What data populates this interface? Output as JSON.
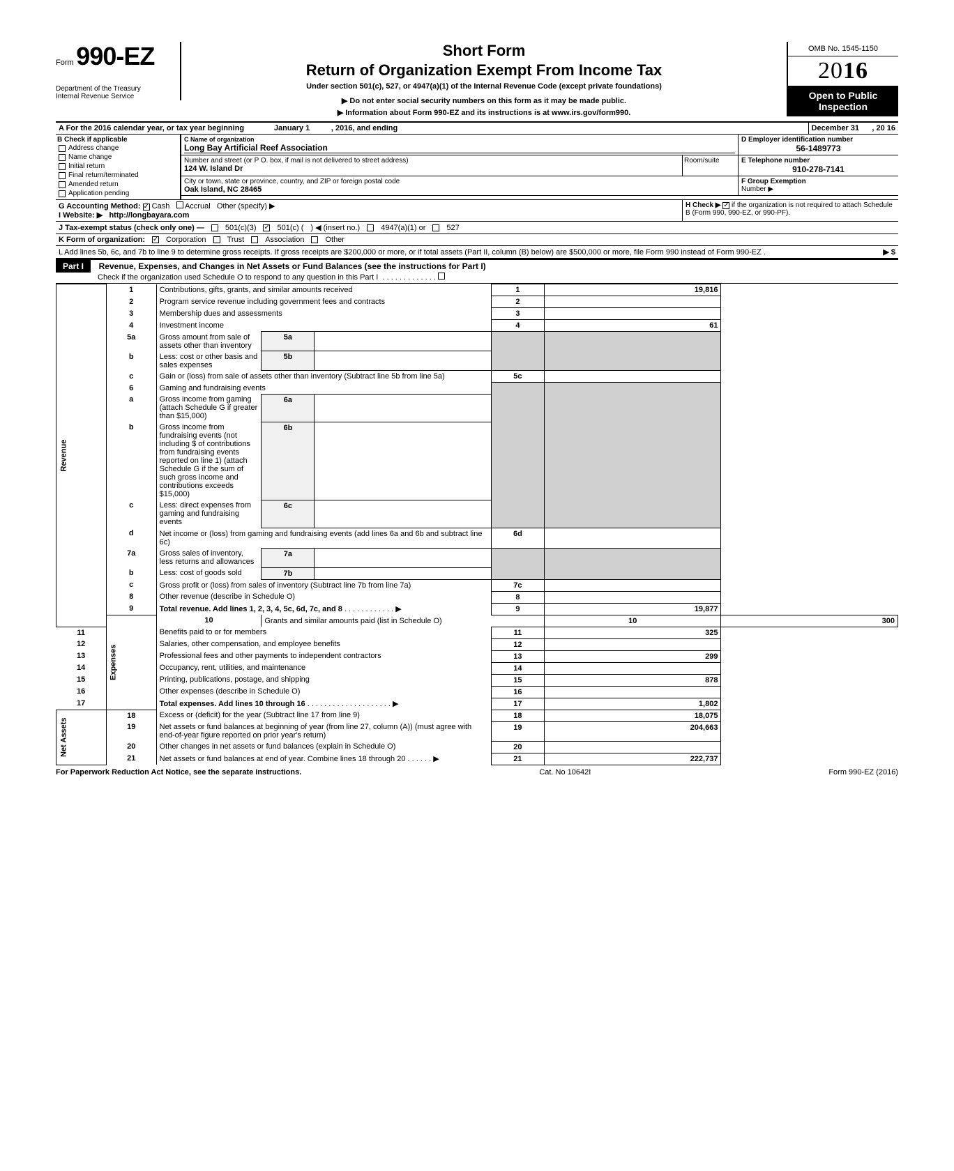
{
  "header": {
    "form_prefix": "Form",
    "form_number": "990-EZ",
    "short_form": "Short Form",
    "return_title": "Return of Organization Exempt From Income Tax",
    "under_section": "Under section 501(c), 527, or 4947(a)(1) of the Internal Revenue Code (except private foundations)",
    "donot": "▶ Do not enter social security numbers on this form as it may be made public.",
    "info_about": "▶ Information about Form 990-EZ and its instructions is at www.irs.gov/form990.",
    "omb": "OMB No. 1545-1150",
    "year_outline": "20",
    "year_bold": "16",
    "open_public_1": "Open to Public",
    "open_public_2": "Inspection",
    "dept": "Department of the Treasury",
    "irs": "Internal Revenue Service"
  },
  "row_a": {
    "label": "A For the 2016 calendar year, or tax year beginning",
    "begin": "January 1",
    "mid": ", 2016, and ending",
    "end_month": "December 31",
    "end_year": ", 20   16"
  },
  "section_b": {
    "label": "B Check if applicable",
    "items": [
      "Address change",
      "Name change",
      "Initial return",
      "Final return/terminated",
      "Amended return",
      "Application pending"
    ]
  },
  "section_c": {
    "label": "C Name of organization",
    "org_name": "Long Bay Artificial Reef Association",
    "addr_label": "Number and street (or P O. box, if mail is not delivered to street address)",
    "address": "124 W. Island Dr",
    "city_label": "City or town, state or province, country, and ZIP or foreign postal code",
    "city": "Oak Island, NC 28465",
    "room_label": "Room/suite"
  },
  "section_d": {
    "label": "D Employer identification number",
    "ein": "56-1489773"
  },
  "section_e": {
    "label": "E Telephone number",
    "phone": "910-278-7141"
  },
  "section_f": {
    "label": "F Group Exemption",
    "number_label": "Number ▶"
  },
  "row_g": {
    "label": "G Accounting Method:",
    "cash": "Cash",
    "accrual": "Accrual",
    "other": "Other (specify) ▶"
  },
  "row_h": {
    "text1": "H Check ▶",
    "text2": "if the organization is not required to attach Schedule B (Form 990, 990-EZ, or 990-PF)."
  },
  "row_i": {
    "label": "I Website: ▶",
    "website": "http://longbayara.com"
  },
  "row_j": {
    "label": "J Tax-exempt status (check only one) —",
    "opt1": "501(c)(3)",
    "opt2": "501(c) (",
    "insert": ") ◀ (insert no.)",
    "opt3": "4947(a)(1) or",
    "opt4": "527"
  },
  "row_k": {
    "label": "K Form of organization:",
    "corp": "Corporation",
    "trust": "Trust",
    "assoc": "Association",
    "other": "Other"
  },
  "row_l": {
    "text": "L Add lines 5b, 6c, and 7b to line 9 to determine gross receipts. If gross receipts are $200,000 or more, or if total assets (Part II, column (B) below) are $500,000 or more, file Form 990 instead of Form 990-EZ .",
    "arrow": "▶   $"
  },
  "part1": {
    "label": "Part I",
    "title": "Revenue, Expenses, and Changes in Net Assets or Fund Balances (see the instructions for Part I)",
    "sub": "Check if the organization used Schedule O to respond to any question in this Part I"
  },
  "side_labels": {
    "revenue": "Revenue",
    "expenses": "Expenses",
    "net_assets": "Net Assets"
  },
  "lines": {
    "1": {
      "desc": "Contributions, gifts, grants, and similar amounts received",
      "val": "19,816"
    },
    "2": {
      "desc": "Program service revenue including government fees and contracts",
      "val": ""
    },
    "3": {
      "desc": "Membership dues and assessments",
      "val": ""
    },
    "4": {
      "desc": "Investment income",
      "val": "61"
    },
    "5a": {
      "desc": "Gross amount from sale of assets other than inventory",
      "sub": "5a"
    },
    "5b": {
      "desc": "Less: cost or other basis and sales expenses",
      "sub": "5b"
    },
    "5c": {
      "desc": "Gain or (loss) from sale of assets other than inventory (Subtract line 5b from line 5a)",
      "val": ""
    },
    "6": {
      "desc": "Gaming and fundraising events"
    },
    "6a": {
      "desc": "Gross income from gaming (attach Schedule G if greater than $15,000)",
      "sub": "6a"
    },
    "6b": {
      "desc": "Gross income from fundraising events (not including  $                     of contributions from fundraising events reported on line 1) (attach Schedule G if the sum of such gross income and contributions exceeds $15,000)",
      "sub": "6b"
    },
    "6c": {
      "desc": "Less: direct expenses from gaming and fundraising events",
      "sub": "6c"
    },
    "6d": {
      "desc": "Net income or (loss) from gaming and fundraising events (add lines 6a and 6b and subtract line 6c)",
      "val": ""
    },
    "7a": {
      "desc": "Gross sales of inventory, less returns and allowances",
      "sub": "7a"
    },
    "7b": {
      "desc": "Less: cost of goods sold",
      "sub": "7b"
    },
    "7c": {
      "desc": "Gross profit or (loss) from sales of inventory (Subtract line 7b from line 7a)",
      "val": ""
    },
    "8": {
      "desc": "Other revenue (describe in Schedule O)",
      "val": ""
    },
    "9": {
      "desc": "Total revenue. Add lines 1, 2, 3, 4, 5c, 6d, 7c, and 8",
      "val": "19,877"
    },
    "10": {
      "desc": "Grants and similar amounts paid (list in Schedule O)",
      "val": "300"
    },
    "11": {
      "desc": "Benefits paid to or for members",
      "val": "325"
    },
    "12": {
      "desc": "Salaries, other compensation, and employee benefits",
      "val": ""
    },
    "13": {
      "desc": "Professional fees and other payments to independent contractors",
      "val": "299"
    },
    "14": {
      "desc": "Occupancy, rent, utilities, and maintenance",
      "val": ""
    },
    "15": {
      "desc": "Printing, publications, postage, and shipping",
      "val": "878"
    },
    "16": {
      "desc": "Other expenses (describe in Schedule O)",
      "val": ""
    },
    "17": {
      "desc": "Total expenses. Add lines 10 through 16",
      "val": "1,802"
    },
    "18": {
      "desc": "Excess or (deficit) for the year (Subtract line 17 from line 9)",
      "val": "18,075"
    },
    "19": {
      "desc": "Net assets or fund balances at beginning of year (from line 27, column (A)) (must agree with end-of-year figure reported on prior year's return)",
      "val": "204,663"
    },
    "20": {
      "desc": "Other changes in net assets or fund balances (explain in Schedule O)",
      "val": ""
    },
    "21": {
      "desc": "Net assets or fund balances at end of year. Combine lines 18 through 20",
      "val": "222,737"
    }
  },
  "footer": {
    "left": "For Paperwork Reduction Act Notice, see the separate instructions.",
    "cat": "Cat. No  10642I",
    "right": "Form 990-EZ (2016)"
  }
}
